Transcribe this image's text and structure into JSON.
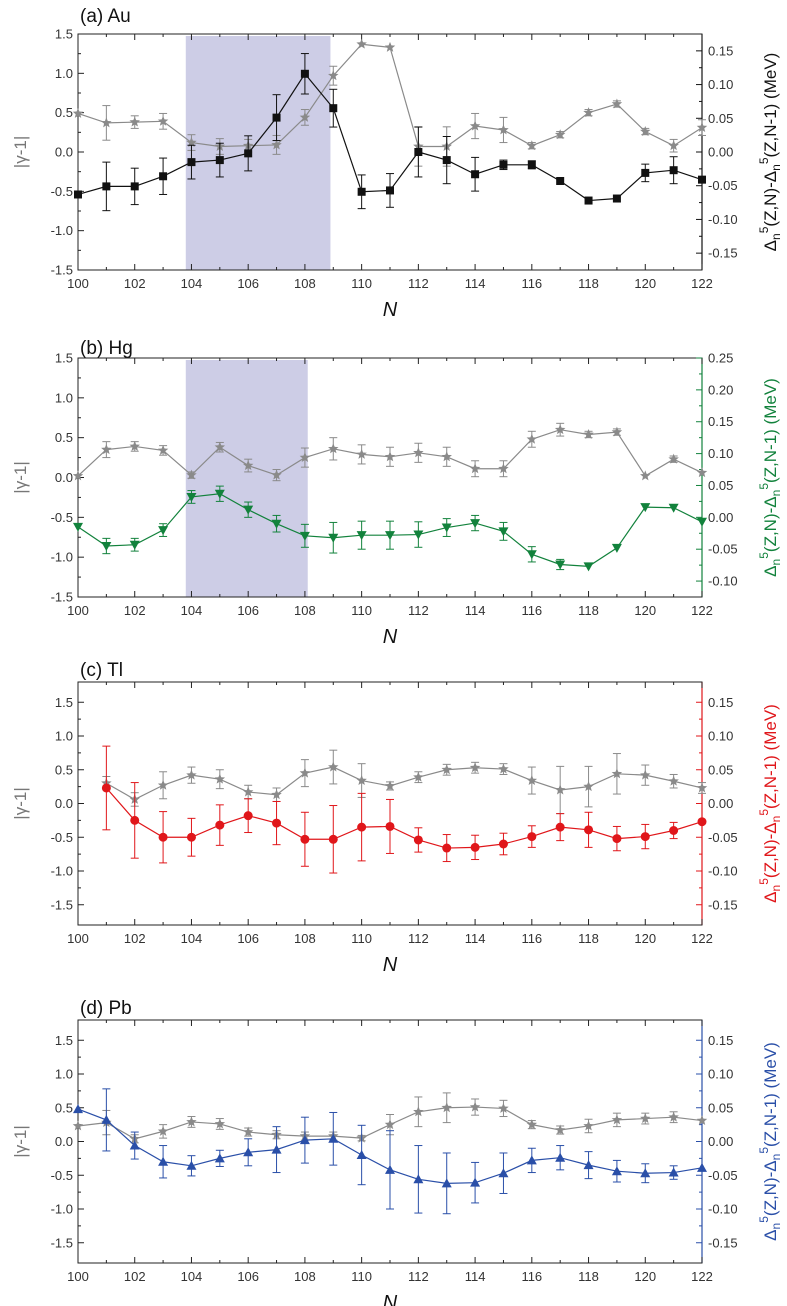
{
  "colors": {
    "gamma": "#8a8a8a",
    "axis": "#222222",
    "shade": "#cdcde6"
  },
  "chart_data": [
    {
      "type": "line",
      "panel_label": "(a) Au",
      "xlabel": "N",
      "ylabel_left": "|γ-1|",
      "ylabel_right": "Δn5(Z,N)-Δn5(Z,N-1) (MeV)",
      "ylabel_right_parts": {
        "d1": "Δ",
        "n1": "n",
        "s1": "5",
        "m1": "(Z,N)-",
        "d2": "Δ",
        "n2": "n",
        "s2": "5",
        "m2": "(Z,N-1) (MeV)"
      },
      "xlim": [
        100,
        122
      ],
      "ylim_left": [
        -1.5,
        1.5
      ],
      "ylim_right": [
        -0.175,
        0.175
      ],
      "x_ticks": [
        "100",
        "102",
        "104",
        "106",
        "108",
        "110",
        "112",
        "114",
        "116",
        "118",
        "120",
        "122"
      ],
      "y_ticks_left": [
        "-1.5",
        "-1.0",
        "-0.5",
        "0.0",
        "0.5",
        "1.0",
        "1.5"
      ],
      "y_ticks_right": [
        "-0.15",
        "-0.10",
        "-0.05",
        "0.00",
        "0.05",
        "0.10",
        "0.15"
      ],
      "shaded_region": [
        103.8,
        108.9
      ],
      "right_color": "#111111",
      "right_marker": "square",
      "series": [
        {
          "axis": "left",
          "x": [
            100,
            101,
            102,
            103,
            104,
            105,
            106,
            107,
            108,
            109,
            110,
            111,
            112,
            113,
            114,
            115,
            116,
            117,
            118,
            119,
            120,
            121,
            122
          ],
          "y": [
            0.49,
            0.37,
            0.38,
            0.39,
            0.12,
            0.07,
            0.08,
            0.09,
            0.44,
            0.97,
            1.37,
            1.33,
            0.07,
            0.07,
            0.33,
            0.28,
            0.08,
            0.22,
            0.5,
            0.61,
            0.26,
            0.08,
            0.31
          ],
          "err": [
            0.0,
            0.22,
            0.08,
            0.1,
            0.1,
            0.1,
            0.08,
            0.12,
            0.1,
            0.12,
            0.0,
            0.0,
            0.25,
            0.25,
            0.16,
            0.16,
            0.04,
            0.04,
            0.04,
            0.04,
            0.04,
            0.08,
            0.1
          ]
        },
        {
          "axis": "right",
          "x": [
            100,
            101,
            102,
            103,
            104,
            105,
            106,
            107,
            108,
            109,
            110,
            111,
            112,
            113,
            114,
            115,
            116,
            117,
            118,
            119,
            120,
            121,
            122
          ],
          "y": [
            -0.063,
            -0.051,
            -0.051,
            -0.036,
            -0.015,
            -0.012,
            -0.002,
            0.051,
            0.116,
            0.065,
            -0.059,
            -0.057,
            0.0,
            -0.012,
            -0.033,
            -0.019,
            -0.019,
            -0.043,
            -0.072,
            -0.069,
            -0.031,
            -0.027,
            -0.041
          ],
          "err": [
            0.0,
            0.036,
            0.027,
            0.027,
            0.025,
            0.025,
            0.026,
            0.034,
            0.03,
            0.028,
            0.025,
            0.025,
            0.037,
            0.035,
            0.025,
            0.007,
            0.006,
            0.0,
            0.0,
            0.0,
            0.013,
            0.02,
            0.0
          ]
        }
      ]
    },
    {
      "type": "line",
      "panel_label": "(b) Hg",
      "xlabel": "N",
      "ylabel_left": "|γ-1|",
      "ylabel_right": "Δn5(Z,N)-Δn5(Z,N-1) (MeV)",
      "ylabel_right_parts": {
        "d1": "Δ",
        "n1": "n",
        "s1": "5",
        "m1": "(Z,N)-",
        "d2": "Δ",
        "n2": "n",
        "s2": "5",
        "m2": "(Z,N-1) (MeV)"
      },
      "xlim": [
        100,
        122
      ],
      "ylim_left": [
        -1.5,
        1.5
      ],
      "ylim_right": [
        -0.125,
        0.25
      ],
      "x_ticks": [
        "100",
        "102",
        "104",
        "106",
        "108",
        "110",
        "112",
        "114",
        "116",
        "118",
        "120",
        "122"
      ],
      "y_ticks_left": [
        "-1.5",
        "-1.0",
        "-0.5",
        "0.0",
        "0.5",
        "1.0",
        "1.5"
      ],
      "y_ticks_right": [
        "-0.10",
        "-0.05",
        "0.00",
        "0.05",
        "0.10",
        "0.15",
        "0.20",
        "0.25"
      ],
      "shaded_region": [
        103.8,
        108.1
      ],
      "right_color": "#12823c",
      "right_marker": "down-triangle",
      "series": [
        {
          "axis": "left",
          "x": [
            100,
            101,
            102,
            103,
            104,
            105,
            106,
            107,
            108,
            109,
            110,
            111,
            112,
            113,
            114,
            115,
            116,
            117,
            118,
            119,
            120,
            121,
            122
          ],
          "y": [
            0.02,
            0.35,
            0.39,
            0.34,
            0.03,
            0.38,
            0.15,
            0.03,
            0.25,
            0.36,
            0.29,
            0.26,
            0.31,
            0.26,
            0.11,
            0.11,
            0.48,
            0.6,
            0.54,
            0.57,
            0.02,
            0.23,
            0.06
          ],
          "err": [
            0.0,
            0.1,
            0.06,
            0.06,
            0.04,
            0.06,
            0.08,
            0.07,
            0.12,
            0.14,
            0.12,
            0.12,
            0.12,
            0.12,
            0.1,
            0.1,
            0.1,
            0.08,
            0.04,
            0.04,
            0.0,
            0.04,
            0.0
          ]
        },
        {
          "axis": "right",
          "x": [
            100,
            101,
            102,
            103,
            104,
            105,
            106,
            107,
            108,
            109,
            110,
            111,
            112,
            113,
            114,
            115,
            116,
            117,
            118,
            119,
            120,
            121,
            122
          ],
          "y": [
            -0.015,
            -0.045,
            -0.043,
            -0.02,
            0.032,
            0.037,
            0.012,
            -0.01,
            -0.029,
            -0.032,
            -0.028,
            -0.028,
            -0.027,
            -0.016,
            -0.009,
            -0.022,
            -0.058,
            -0.074,
            -0.077,
            -0.048,
            0.016,
            0.015,
            -0.007
          ],
          "err": [
            0.0,
            0.012,
            0.01,
            0.01,
            0.01,
            0.012,
            0.012,
            0.013,
            0.018,
            0.024,
            0.022,
            0.022,
            0.02,
            0.014,
            0.012,
            0.014,
            0.012,
            0.008,
            0.0,
            0.0,
            0.0,
            0.0,
            0.0
          ]
        }
      ]
    },
    {
      "type": "line",
      "panel_label": "(c) Tl",
      "xlabel": "N",
      "ylabel_left": "|γ-1|",
      "ylabel_right": "Δn5(Z,N)-Δn5(Z,N-1) (MeV)",
      "ylabel_right_parts": {
        "d1": "Δ",
        "n1": "n",
        "s1": "5",
        "m1": "(Z,N)-",
        "d2": "Δ",
        "n2": "n",
        "s2": "5",
        "m2": "(Z,N-1) (MeV)"
      },
      "xlim": [
        100,
        122
      ],
      "ylim_left": [
        -1.8,
        1.8
      ],
      "ylim_right": [
        -0.18,
        0.18
      ],
      "x_ticks": [
        "100",
        "102",
        "104",
        "106",
        "108",
        "110",
        "112",
        "114",
        "116",
        "118",
        "120",
        "122"
      ],
      "y_ticks_left": [
        "-1.5",
        "-1.0",
        "-0.5",
        "0.0",
        "0.5",
        "1.0",
        "1.5"
      ],
      "y_ticks_right": [
        "-0.15",
        "-0.10",
        "-0.05",
        "0.00",
        "0.05",
        "0.10",
        "0.15"
      ],
      "shaded_region": null,
      "right_color": "#e0161a",
      "right_marker": "circle",
      "series": [
        {
          "axis": "left",
          "x": [
            101,
            102,
            103,
            104,
            105,
            106,
            107,
            108,
            109,
            110,
            111,
            112,
            113,
            114,
            115,
            116,
            117,
            118,
            119,
            120,
            121,
            122
          ],
          "y": [
            0.3,
            0.06,
            0.27,
            0.42,
            0.36,
            0.17,
            0.13,
            0.45,
            0.54,
            0.34,
            0.26,
            0.39,
            0.5,
            0.53,
            0.51,
            0.34,
            0.2,
            0.25,
            0.44,
            0.42,
            0.33,
            0.23
          ],
          "err": [
            0.1,
            0.1,
            0.2,
            0.12,
            0.14,
            0.1,
            0.1,
            0.2,
            0.25,
            0.25,
            0.06,
            0.08,
            0.08,
            0.08,
            0.08,
            0.2,
            0.35,
            0.3,
            0.3,
            0.15,
            0.1,
            0.08
          ]
        },
        {
          "axis": "right",
          "x": [
            101,
            102,
            103,
            104,
            105,
            106,
            107,
            108,
            109,
            110,
            111,
            112,
            113,
            114,
            115,
            116,
            117,
            118,
            119,
            120,
            121,
            122
          ],
          "y": [
            0.023,
            -0.025,
            -0.05,
            -0.05,
            -0.032,
            -0.018,
            -0.029,
            -0.053,
            -0.053,
            -0.035,
            -0.034,
            -0.054,
            -0.066,
            -0.065,
            -0.06,
            -0.049,
            -0.035,
            -0.039,
            -0.052,
            -0.049,
            -0.04,
            -0.027
          ],
          "err": [
            0.062,
            0.056,
            0.038,
            0.028,
            0.03,
            0.025,
            0.032,
            0.04,
            0.05,
            0.05,
            0.04,
            0.018,
            0.02,
            0.018,
            0.016,
            0.016,
            0.02,
            0.026,
            0.018,
            0.018,
            0.012,
            0.0
          ]
        }
      ]
    },
    {
      "type": "line",
      "panel_label": "(d) Pb",
      "xlabel": "N",
      "ylabel_left": "|γ-1|",
      "ylabel_right": "Δn5(Z,N)-Δn5(Z,N-1) (MeV)",
      "ylabel_right_parts": {
        "d1": "Δ",
        "n1": "n",
        "s1": "5",
        "m1": "(Z,N)-",
        "d2": "Δ",
        "n2": "n",
        "s2": "5",
        "m2": "(Z,N-1) (MeV)"
      },
      "xlim": [
        100,
        122
      ],
      "ylim_left": [
        -1.8,
        1.8
      ],
      "ylim_right": [
        -0.18,
        0.18
      ],
      "x_ticks": [
        "100",
        "102",
        "104",
        "106",
        "108",
        "110",
        "112",
        "114",
        "116",
        "118",
        "120",
        "122"
      ],
      "y_ticks_left": [
        "-1.5",
        "-1.0",
        "-0.5",
        "0.0",
        "0.5",
        "1.0",
        "1.5"
      ],
      "y_ticks_right": [
        "-0.15",
        "-0.10",
        "-0.05",
        "0.00",
        "0.05",
        "0.10",
        "0.15"
      ],
      "shaded_region": null,
      "right_color": "#2a4fa8",
      "right_marker": "up-triangle",
      "series": [
        {
          "axis": "left",
          "x": [
            100,
            101,
            102,
            103,
            104,
            105,
            106,
            107,
            108,
            109,
            110,
            111,
            112,
            113,
            114,
            115,
            116,
            117,
            118,
            119,
            120,
            121,
            122
          ],
          "y": [
            0.23,
            0.28,
            0.04,
            0.15,
            0.29,
            0.26,
            0.14,
            0.1,
            0.08,
            0.08,
            0.05,
            0.25,
            0.44,
            0.5,
            0.51,
            0.49,
            0.25,
            0.17,
            0.23,
            0.32,
            0.34,
            0.36,
            0.31
          ],
          "err": [
            0.0,
            0.18,
            0.06,
            0.1,
            0.08,
            0.08,
            0.06,
            0.06,
            0.06,
            0.06,
            0.04,
            0.15,
            0.22,
            0.22,
            0.12,
            0.12,
            0.06,
            0.06,
            0.1,
            0.1,
            0.08,
            0.08,
            0.0
          ]
        },
        {
          "axis": "right",
          "x": [
            100,
            101,
            102,
            103,
            104,
            105,
            106,
            107,
            108,
            109,
            110,
            111,
            112,
            113,
            114,
            115,
            116,
            117,
            118,
            119,
            120,
            121,
            122
          ],
          "y": [
            0.048,
            0.032,
            -0.006,
            -0.03,
            -0.036,
            -0.025,
            -0.016,
            -0.012,
            0.002,
            0.004,
            -0.02,
            -0.042,
            -0.056,
            -0.062,
            -0.061,
            -0.047,
            -0.028,
            -0.024,
            -0.035,
            -0.044,
            -0.047,
            -0.046,
            -0.039
          ],
          "err": [
            0.0,
            0.046,
            0.02,
            0.024,
            0.015,
            0.012,
            0.02,
            0.034,
            0.034,
            0.039,
            0.044,
            0.058,
            0.05,
            0.045,
            0.03,
            0.03,
            0.018,
            0.018,
            0.02,
            0.016,
            0.014,
            0.01,
            0.0
          ]
        }
      ]
    }
  ]
}
